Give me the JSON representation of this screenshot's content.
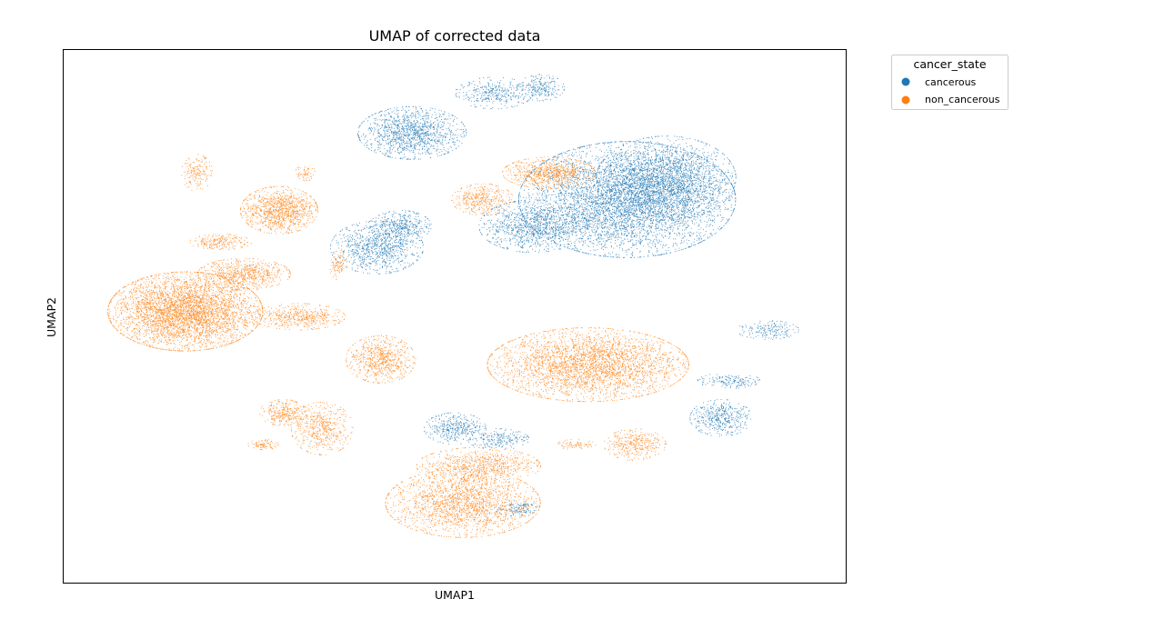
{
  "chart_data": {
    "type": "scatter",
    "title": "UMAP of corrected data",
    "xlabel": "UMAP1",
    "ylabel": "UMAP2",
    "xlim": [
      0,
      100
    ],
    "ylim": [
      0,
      100
    ],
    "grid": false,
    "ticks_shown": false,
    "legend": {
      "title": "cancer_state",
      "placement": "outside-right-top",
      "entries": [
        {
          "label": "cancerous",
          "color": "#1f77b4"
        },
        {
          "label": "non_cancerous",
          "color": "#ff7f0e"
        }
      ]
    },
    "series": [
      {
        "name": "cancerous",
        "color": "#1f77b4",
        "clusters": [
          {
            "cx": 72,
            "cy": 72,
            "rx": 14,
            "ry": 11,
            "n": 5200
          },
          {
            "cx": 77,
            "cy": 76,
            "rx": 9,
            "ry": 8,
            "n": 1800
          },
          {
            "cx": 60,
            "cy": 67,
            "rx": 7,
            "ry": 5,
            "n": 1100
          },
          {
            "cx": 40,
            "cy": 63,
            "rx": 6,
            "ry": 5,
            "n": 900
          },
          {
            "cx": 43,
            "cy": 67,
            "rx": 4,
            "ry": 3,
            "n": 400
          },
          {
            "cx": 44.5,
            "cy": 84.5,
            "rx": 7,
            "ry": 5,
            "n": 1300
          },
          {
            "cx": 55,
            "cy": 92,
            "rx": 5,
            "ry": 3,
            "n": 350
          },
          {
            "cx": 61,
            "cy": 93,
            "rx": 3,
            "ry": 2.5,
            "n": 220
          },
          {
            "cx": 90,
            "cy": 47.5,
            "rx": 4,
            "ry": 1.8,
            "n": 180
          },
          {
            "cx": 84,
            "cy": 31,
            "rx": 4,
            "ry": 3.5,
            "n": 450
          },
          {
            "cx": 85,
            "cy": 38,
            "rx": 4,
            "ry": 1.5,
            "n": 170
          },
          {
            "cx": 50,
            "cy": 29,
            "rx": 4,
            "ry": 3,
            "n": 380
          },
          {
            "cx": 55.5,
            "cy": 27,
            "rx": 4,
            "ry": 2,
            "n": 220
          },
          {
            "cx": 58,
            "cy": 14,
            "rx": 3,
            "ry": 1.5,
            "n": 130
          }
        ]
      },
      {
        "name": "non_cancerous",
        "color": "#ff7f0e",
        "clusters": [
          {
            "cx": 15.5,
            "cy": 51,
            "rx": 10,
            "ry": 7.5,
            "n": 4200
          },
          {
            "cx": 27.5,
            "cy": 70,
            "rx": 5,
            "ry": 4.5,
            "n": 1100
          },
          {
            "cx": 23,
            "cy": 58,
            "rx": 6,
            "ry": 3,
            "n": 700
          },
          {
            "cx": 30,
            "cy": 50,
            "rx": 6,
            "ry": 2.5,
            "n": 500
          },
          {
            "cx": 20,
            "cy": 64,
            "rx": 4,
            "ry": 1.5,
            "n": 220
          },
          {
            "cx": 17,
            "cy": 77,
            "rx": 2,
            "ry": 3.5,
            "n": 170
          },
          {
            "cx": 40.5,
            "cy": 42,
            "rx": 4.5,
            "ry": 4.5,
            "n": 700
          },
          {
            "cx": 67,
            "cy": 41,
            "rx": 13,
            "ry": 7,
            "n": 3300
          },
          {
            "cx": 62,
            "cy": 77,
            "rx": 6,
            "ry": 3,
            "n": 750
          },
          {
            "cx": 53.5,
            "cy": 72,
            "rx": 4,
            "ry": 3,
            "n": 400
          },
          {
            "cx": 28,
            "cy": 32,
            "rx": 3,
            "ry": 2.5,
            "n": 300
          },
          {
            "cx": 33,
            "cy": 29,
            "rx": 4,
            "ry": 5,
            "n": 500
          },
          {
            "cx": 25.5,
            "cy": 26,
            "rx": 2,
            "ry": 1,
            "n": 90
          },
          {
            "cx": 51,
            "cy": 15,
            "rx": 10,
            "ry": 6.5,
            "n": 2000
          },
          {
            "cx": 53,
            "cy": 22,
            "rx": 8,
            "ry": 3.5,
            "n": 800
          },
          {
            "cx": 73,
            "cy": 26,
            "rx": 4,
            "ry": 3,
            "n": 350
          },
          {
            "cx": 65.5,
            "cy": 26,
            "rx": 2.5,
            "ry": 1,
            "n": 80
          },
          {
            "cx": 31,
            "cy": 77,
            "rx": 1.5,
            "ry": 1.5,
            "n": 60
          },
          {
            "cx": 35,
            "cy": 60,
            "rx": 1.2,
            "ry": 3,
            "n": 90
          }
        ]
      }
    ]
  }
}
